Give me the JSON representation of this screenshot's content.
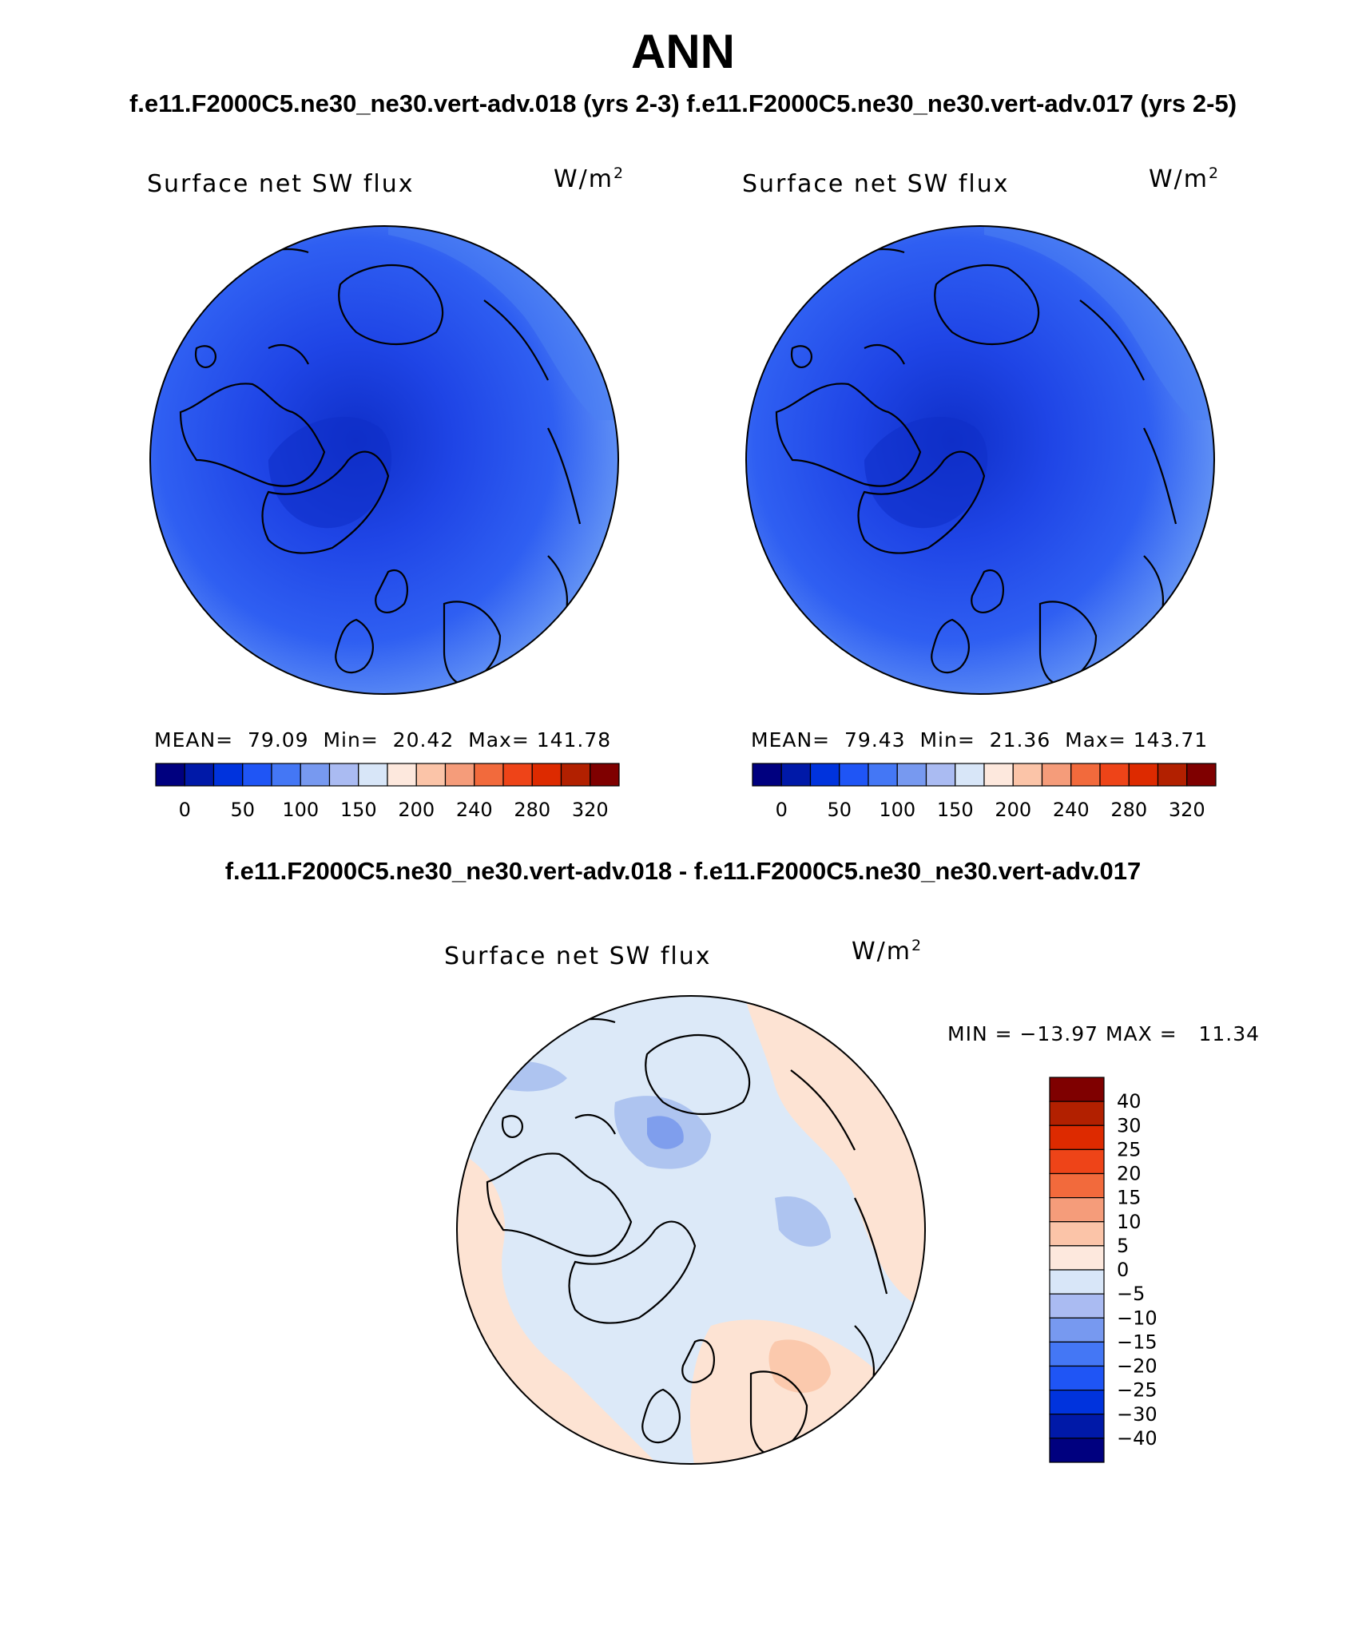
{
  "header": {
    "title": "ANN",
    "subtitle": "f.e11.F2000C5.ne30_ne30.vert-adv.018 (yrs 2-3)  f.e11.F2000C5.ne30_ne30.vert-adv.017 (yrs 2-5)",
    "diff_title": "f.e11.F2000C5.ne30_ne30.vert-adv.018 - f.e11.F2000C5.ne30_ne30.vert-adv.017"
  },
  "panels": {
    "left": {
      "title": "Surface net SW flux",
      "unit": "W/m",
      "unit_sup": "2",
      "stats": "MEAN=  79.09  Min=  20.42  Max= 141.78"
    },
    "right": {
      "title": "Surface net SW flux",
      "unit": "W/m",
      "unit_sup": "2",
      "stats": "MEAN=  79.43  Min=  21.36  Max= 143.71"
    },
    "diff": {
      "title": "Surface net SW flux",
      "unit": "W/m",
      "unit_sup": "2",
      "stats": "MIN = −13.97 MAX =   11.34"
    }
  },
  "colorbars": {
    "abs": {
      "colors": [
        "#00007f",
        "#0019a8",
        "#0033dd",
        "#1f55f5",
        "#4477f5",
        "#7799f0",
        "#aabbf2",
        "#d8e6f8",
        "#fde8dd",
        "#fbc4a8",
        "#f59c7a",
        "#f26a3c",
        "#ee4418",
        "#dd2a00",
        "#b22000",
        "#7f0000"
      ],
      "labels": [
        "0",
        "50",
        "100",
        "150",
        "200",
        "240",
        "280",
        "320"
      ]
    },
    "diff": {
      "colors": [
        "#00007f",
        "#0019a8",
        "#0033dd",
        "#1f55f5",
        "#4477f5",
        "#7799f0",
        "#aabbf2",
        "#d8e6f8",
        "#fde8dd",
        "#fbc4a8",
        "#f59c7a",
        "#f26a3c",
        "#ee4418",
        "#dd2a00",
        "#b22000",
        "#7f0000"
      ],
      "labels": [
        "40",
        "30",
        "25",
        "20",
        "15",
        "10",
        "5",
        "0",
        "−5",
        "−10",
        "−15",
        "−20",
        "−25",
        "−30",
        "−40"
      ]
    }
  },
  "map_colors": {
    "abs_low": "#1f45e6",
    "abs_mid": "#2f5ff2",
    "abs_high": "#4a7ff3",
    "abs_rim": "#6d9df5",
    "abs_deep": "#0f2fc8",
    "diff_base": "#dce9f8",
    "diff_pos": "#fde3d3",
    "diff_pos2": "#fbc9ad",
    "diff_neg": "#aec4f0",
    "diff_neg2": "#7f9eed"
  }
}
